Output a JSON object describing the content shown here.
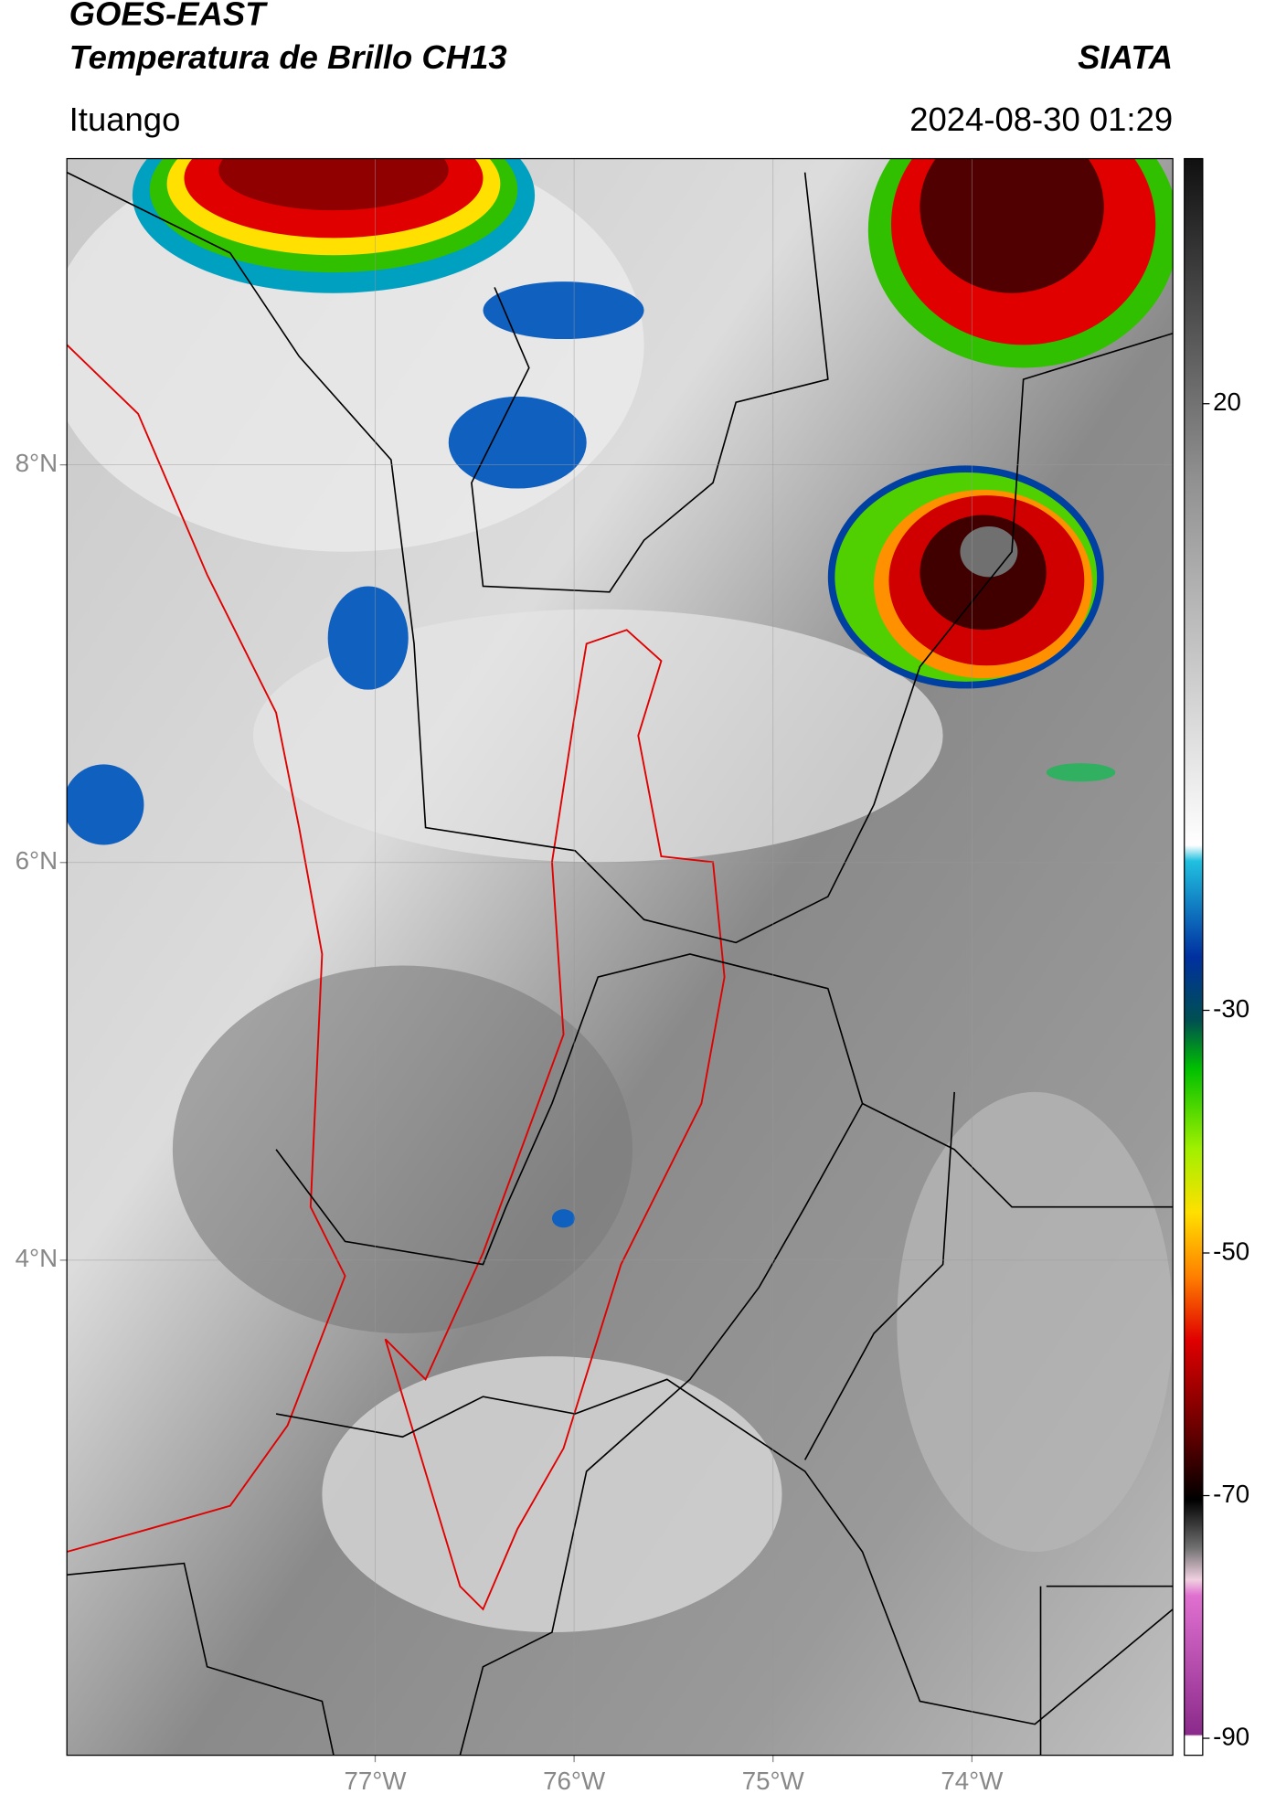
{
  "header": {
    "title_line1": "GOES-EAST",
    "title_line2": "Temperatura de Brillo CH13",
    "brand": "SIATA",
    "location": "Ituango",
    "timestamp": "2024-08-30 01:29"
  },
  "map": {
    "lon_range": [
      -78.55,
      -72.99
    ],
    "lat_range": [
      1.51,
      9.54
    ],
    "lon_ticks": [
      {
        "value": -77,
        "label": "77°W"
      },
      {
        "value": -76,
        "label": "76°W"
      },
      {
        "value": -75,
        "label": "75°W"
      },
      {
        "value": -74,
        "label": "74°W"
      }
    ],
    "lat_ticks": [
      {
        "value": 8,
        "label": "8°N"
      },
      {
        "value": 6,
        "label": "6°N"
      },
      {
        "value": 4,
        "label": "4°N"
      }
    ]
  },
  "colorbar": {
    "range": [
      -91.4,
      40.2
    ],
    "ticks": [
      20,
      -30,
      -50,
      -70,
      -90
    ]
  }
}
